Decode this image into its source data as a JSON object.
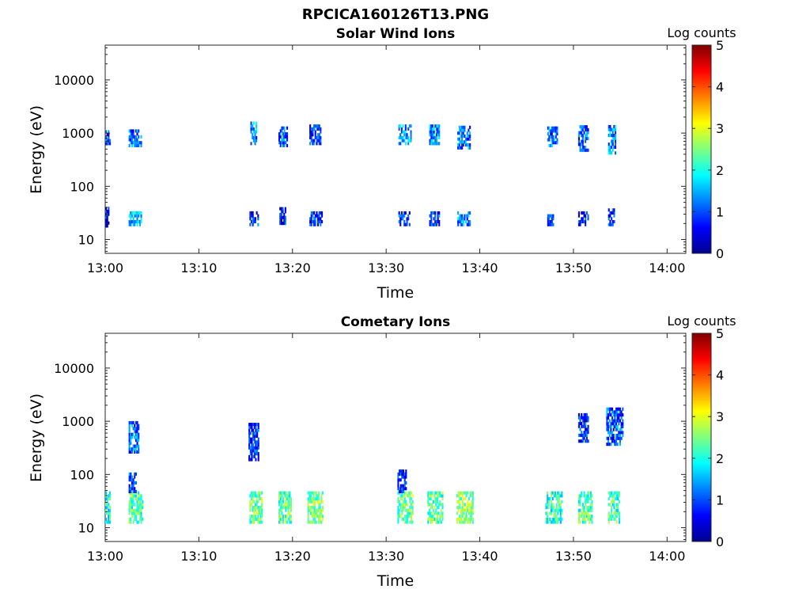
{
  "figure": {
    "title": "RPCICA160126T13.PNG"
  },
  "chart_data": [
    {
      "type": "heatmap",
      "title": "Solar Wind Ions",
      "xlabel": "Time",
      "ylabel": "Energy (eV)",
      "x_ticks": [
        "13:00",
        "13:10",
        "13:20",
        "13:30",
        "13:40",
        "13:50",
        "14:00"
      ],
      "xlim_minutes": [
        0,
        62
      ],
      "y_ticks": [
        "10",
        "100",
        "1000",
        "10000"
      ],
      "y_tick_values": [
        10,
        100,
        1000,
        10000
      ],
      "ylim": [
        5.5,
        45000
      ],
      "y_scale": "log",
      "colorbar": {
        "label": "Log counts",
        "ticks": [
          "0",
          "1",
          "2",
          "3",
          "4",
          "5"
        ],
        "range": [
          0,
          5
        ],
        "colormap": "jet"
      },
      "grid": false,
      "clusters": [
        {
          "t": [
            0.0,
            0.5
          ],
          "e": [
            600,
            1100
          ],
          "level": 0.8
        },
        {
          "t": [
            0.0,
            0.4
          ],
          "e": [
            17,
            40
          ],
          "level": 0.6
        },
        {
          "t": [
            2.5,
            3.8
          ],
          "e": [
            550,
            1150
          ],
          "level": 1.1
        },
        {
          "t": [
            2.5,
            3.8
          ],
          "e": [
            18,
            33
          ],
          "level": 1.5
        },
        {
          "t": [
            15.5,
            16.2
          ],
          "e": [
            600,
            1500
          ],
          "level": 1.3
        },
        {
          "t": [
            15.4,
            16.3
          ],
          "e": [
            18,
            33
          ],
          "level": 0.9
        },
        {
          "t": [
            18.5,
            19.4
          ],
          "e": [
            550,
            1300
          ],
          "level": 1.0
        },
        {
          "t": [
            18.6,
            19.3
          ],
          "e": [
            19,
            40
          ],
          "level": 0.7
        },
        {
          "t": [
            21.8,
            23.0
          ],
          "e": [
            600,
            1300
          ],
          "level": 0.8
        },
        {
          "t": [
            21.8,
            23.2
          ],
          "e": [
            18,
            30
          ],
          "level": 0.8
        },
        {
          "t": [
            31.3,
            32.6
          ],
          "e": [
            600,
            1300
          ],
          "level": 1.4
        },
        {
          "t": [
            31.3,
            32.5
          ],
          "e": [
            18,
            30
          ],
          "level": 0.9
        },
        {
          "t": [
            34.6,
            35.6
          ],
          "e": [
            600,
            1400
          ],
          "level": 1.3
        },
        {
          "t": [
            34.6,
            35.6
          ],
          "e": [
            18,
            30
          ],
          "level": 0.9
        },
        {
          "t": [
            37.6,
            38.9
          ],
          "e": [
            500,
            1300
          ],
          "level": 1.2
        },
        {
          "t": [
            37.6,
            38.9
          ],
          "e": [
            18,
            30
          ],
          "level": 1.3
        },
        {
          "t": [
            47.2,
            48.3
          ],
          "e": [
            550,
            1200
          ],
          "level": 1.2
        },
        {
          "t": [
            47.2,
            47.8
          ],
          "e": [
            18,
            28
          ],
          "level": 0.9
        },
        {
          "t": [
            50.5,
            51.5
          ],
          "e": [
            450,
            1300
          ],
          "level": 1.0
        },
        {
          "t": [
            50.5,
            51.5
          ],
          "e": [
            18,
            30
          ],
          "level": 0.8
        },
        {
          "t": [
            53.7,
            54.5
          ],
          "e": [
            400,
            1300
          ],
          "level": 1.3
        },
        {
          "t": [
            53.7,
            54.4
          ],
          "e": [
            18,
            35
          ],
          "level": 0.8
        }
      ]
    },
    {
      "type": "heatmap",
      "title": "Cometary Ions",
      "xlabel": "Time",
      "ylabel": "Energy (eV)",
      "x_ticks": [
        "13:00",
        "13:10",
        "13:20",
        "13:30",
        "13:40",
        "13:50",
        "14:00"
      ],
      "xlim_minutes": [
        0,
        62
      ],
      "y_ticks": [
        "10",
        "100",
        "1000",
        "10000"
      ],
      "y_tick_values": [
        10,
        100,
        1000,
        10000
      ],
      "ylim": [
        5.5,
        45000
      ],
      "y_scale": "log",
      "colorbar": {
        "label": "Log counts",
        "ticks": [
          "0",
          "1",
          "2",
          "3",
          "4",
          "5"
        ],
        "range": [
          0,
          5
        ],
        "colormap": "jet"
      },
      "grid": false,
      "clusters": [
        {
          "t": [
            0.0,
            0.5
          ],
          "e": [
            12,
            45
          ],
          "level": 2.0
        },
        {
          "t": [
            2.5,
            4.0
          ],
          "e": [
            12,
            45
          ],
          "level": 2.3
        },
        {
          "t": [
            2.5,
            3.3
          ],
          "e": [
            45,
            100
          ],
          "level": 1.0
        },
        {
          "t": [
            2.5,
            3.5
          ],
          "e": [
            250,
            1000
          ],
          "level": 1.1
        },
        {
          "t": [
            15.4,
            16.7
          ],
          "e": [
            12,
            45
          ],
          "level": 2.4
        },
        {
          "t": [
            15.3,
            16.4
          ],
          "e": [
            180,
            900
          ],
          "level": 0.8
        },
        {
          "t": [
            18.5,
            19.9
          ],
          "e": [
            12,
            45
          ],
          "level": 2.3
        },
        {
          "t": [
            21.6,
            23.2
          ],
          "e": [
            12,
            45
          ],
          "level": 2.5
        },
        {
          "t": [
            31.2,
            32.8
          ],
          "e": [
            12,
            45
          ],
          "level": 2.4
        },
        {
          "t": [
            31.2,
            32.1
          ],
          "e": [
            45,
            110
          ],
          "level": 0.8
        },
        {
          "t": [
            34.4,
            36.0
          ],
          "e": [
            12,
            45
          ],
          "level": 2.3
        },
        {
          "t": [
            37.5,
            39.2
          ],
          "e": [
            12,
            45
          ],
          "level": 2.6
        },
        {
          "t": [
            47.0,
            48.8
          ],
          "e": [
            12,
            45
          ],
          "level": 2.1
        },
        {
          "t": [
            50.5,
            52.0
          ],
          "e": [
            12,
            45
          ],
          "level": 2.3
        },
        {
          "t": [
            53.7,
            54.9
          ],
          "e": [
            12,
            45
          ],
          "level": 2.2
        },
        {
          "t": [
            50.5,
            51.6
          ],
          "e": [
            400,
            1300
          ],
          "level": 0.8
        },
        {
          "t": [
            53.5,
            55.3
          ],
          "e": [
            350,
            1600
          ],
          "level": 1.0
        }
      ]
    }
  ]
}
